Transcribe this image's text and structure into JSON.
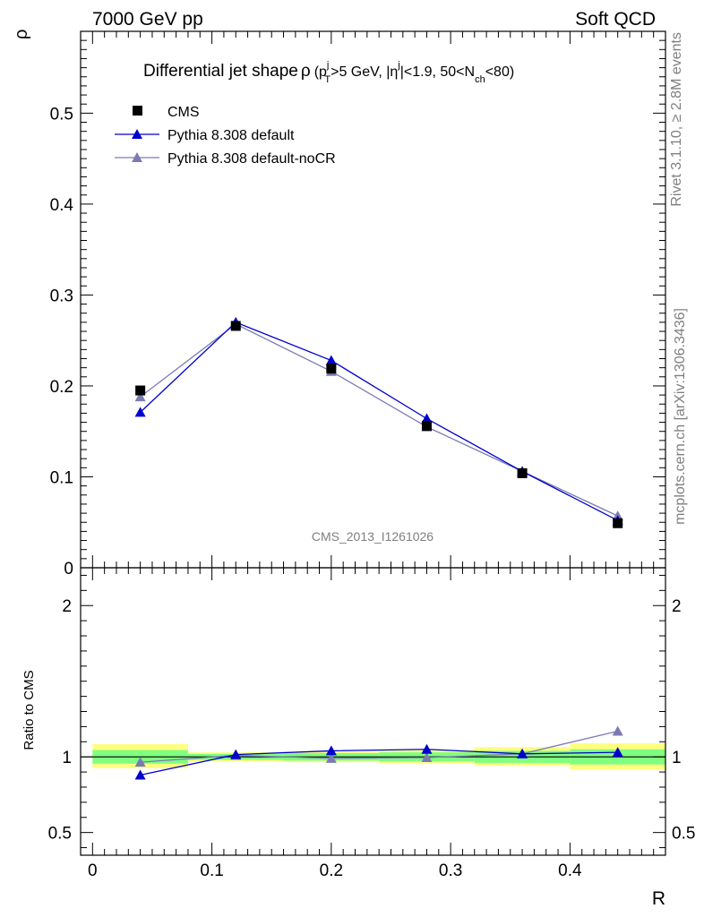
{
  "header": {
    "left": "7000 GeV pp",
    "right": "Soft QCD"
  },
  "side": {
    "rivet": "Rivet 3.1.10, ≥ 2.8M events",
    "mcplots": "mcplots.cern.ch [arXiv:1306.3436]"
  },
  "chart_data": {
    "type": "line",
    "title": "Differential jet shape ρ (p_T^j > 5 GeV, |η^j| < 1.9, 50 < N_ch < 80)",
    "title_parts": {
      "main": "Differential jet shape",
      "rho": "ρ",
      "p": "(p",
      "p_sup": "j",
      "p_sub": "T",
      "gev": ">5 GeV, |η",
      "eta_sup": "j",
      "nch": "|<1.9, 50<N",
      "nch_sub": "ch",
      "end": "<80)"
    },
    "analysis_label": "CMS_2013_I1261026",
    "xlabel": "R",
    "ylabel": "ρ",
    "ratio_ylabel": "Ratio to CMS",
    "xlim": [
      -0.01,
      0.48
    ],
    "ylim": [
      0,
      0.59
    ],
    "ratio_ylim": [
      0.35,
      2.25
    ],
    "x_ticks": [
      "0",
      "0.1",
      "0.2",
      "0.3",
      "0.4"
    ],
    "y_ticks": [
      "0",
      "0.1",
      "0.2",
      "0.3",
      "0.4",
      "0.5"
    ],
    "ratio_ticks": [
      "0.5",
      "1",
      "2"
    ],
    "legend_position": "top-left",
    "bins": [
      [
        0.0,
        0.08
      ],
      [
        0.08,
        0.16
      ],
      [
        0.16,
        0.24
      ],
      [
        0.24,
        0.32
      ],
      [
        0.32,
        0.4
      ],
      [
        0.4,
        0.48
      ]
    ],
    "x": [
      0.04,
      0.12,
      0.2,
      0.28,
      0.36,
      0.44
    ],
    "series": [
      {
        "name": "CMS",
        "marker": "square",
        "color": "#000000",
        "line": false,
        "values": [
          0.195,
          0.266,
          0.219,
          0.156,
          0.104,
          0.049
        ]
      },
      {
        "name": "Pythia 8.308 default",
        "marker": "triangle",
        "color": "#0000cc",
        "line": true,
        "values": [
          0.171,
          0.27,
          0.228,
          0.164,
          0.106,
          0.052
        ],
        "ratio": [
          0.88,
          1.015,
          1.04,
          1.05,
          1.02,
          1.03
        ]
      },
      {
        "name": "Pythia 8.308 default-noCR",
        "marker": "triangle",
        "color": "#7b7bb3",
        "line": true,
        "values": [
          0.188,
          0.268,
          0.216,
          0.155,
          0.106,
          0.057
        ],
        "ratio": [
          0.965,
          1.01,
          0.99,
          0.995,
          1.02,
          1.17
        ]
      }
    ],
    "uncertainty_bands": {
      "green_color": "#80ff80",
      "yellow_color": "#ffff80",
      "green": [
        [
          0.955,
          1.045
        ],
        [
          0.98,
          1.02
        ],
        [
          0.975,
          1.025
        ],
        [
          0.97,
          1.03
        ],
        [
          0.96,
          1.04
        ],
        [
          0.95,
          1.05
        ]
      ],
      "yellow": [
        [
          0.925,
          1.085
        ],
        [
          0.97,
          1.03
        ],
        [
          0.965,
          1.035
        ],
        [
          0.955,
          1.045
        ],
        [
          0.94,
          1.065
        ],
        [
          0.915,
          1.09
        ]
      ]
    }
  }
}
